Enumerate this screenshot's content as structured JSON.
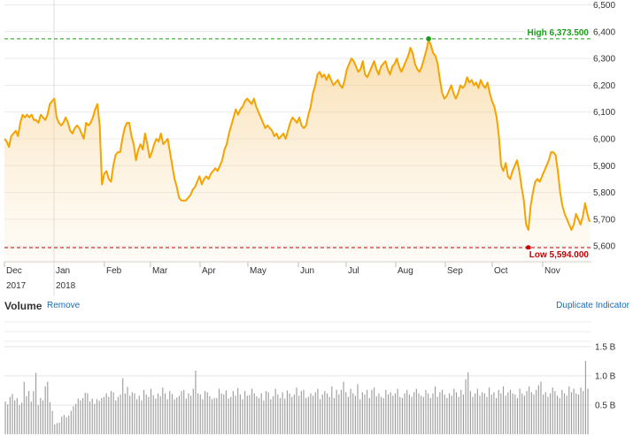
{
  "chart_data": [
    {
      "type": "area",
      "title": "",
      "xlabel": "",
      "ylabel": "",
      "ylim": [
        5500,
        6500
      ],
      "yticks": [
        5600,
        5700,
        5800,
        5900,
        6000,
        6100,
        6200,
        6300,
        6400,
        6500
      ],
      "ytick_labels": [
        "5,600",
        "5,700",
        "5,800",
        "5,900",
        "6,000",
        "6,100",
        "6,200",
        "6,300",
        "6,400",
        "6,500"
      ],
      "month_labels": [
        "Dec",
        "Jan",
        "Feb",
        "Mar",
        "Apr",
        "May",
        "Jun",
        "Jul",
        "Aug",
        "Sep",
        "Oct",
        "Nov"
      ],
      "year_labels": [
        "2017",
        "2018"
      ],
      "high": {
        "label": "High 6,373.500",
        "value": 6373.5,
        "color": "#1a9c1a"
      },
      "low": {
        "label": "Low 5,594.000",
        "value": 5594.0,
        "color": "#c00000"
      },
      "line_color": "#f5a300",
      "values": [
        6000,
        5990,
        5970,
        6010,
        6020,
        6030,
        6010,
        6060,
        6090,
        6080,
        6090,
        6080,
        6090,
        6070,
        6070,
        6060,
        6090,
        6080,
        6070,
        6090,
        6130,
        6140,
        6150,
        6080,
        6060,
        6050,
        6060,
        6080,
        6060,
        6030,
        6020,
        6040,
        6050,
        6040,
        6020,
        6000,
        6060,
        6050,
        6060,
        6080,
        6110,
        6130,
        6050,
        5830,
        5870,
        5880,
        5850,
        5840,
        5900,
        5940,
        5950,
        5950,
        6000,
        6040,
        6060,
        6060,
        6010,
        5980,
        5920,
        5960,
        5980,
        5960,
        6020,
        5980,
        5930,
        5950,
        5980,
        6000,
        5990,
        6020,
        5980,
        5990,
        6000,
        5950,
        5900,
        5850,
        5820,
        5780,
        5770,
        5770,
        5770,
        5780,
        5790,
        5810,
        5820,
        5840,
        5860,
        5830,
        5850,
        5860,
        5850,
        5870,
        5880,
        5890,
        5880,
        5900,
        5920,
        5960,
        5980,
        6020,
        6050,
        6080,
        6110,
        6090,
        6110,
        6120,
        6140,
        6150,
        6140,
        6130,
        6150,
        6120,
        6100,
        6080,
        6060,
        6040,
        6050,
        6040,
        6030,
        6010,
        6020,
        6000,
        6010,
        6020,
        6000,
        6030,
        6060,
        6080,
        6070,
        6060,
        6080,
        6050,
        6040,
        6050,
        6090,
        6120,
        6170,
        6200,
        6240,
        6250,
        6230,
        6240,
        6220,
        6240,
        6220,
        6200,
        6210,
        6220,
        6200,
        6190,
        6220,
        6260,
        6280,
        6300,
        6290,
        6270,
        6250,
        6260,
        6290,
        6240,
        6230,
        6250,
        6270,
        6290,
        6260,
        6240,
        6270,
        6280,
        6290,
        6260,
        6240,
        6270,
        6280,
        6300,
        6270,
        6250,
        6270,
        6290,
        6310,
        6340,
        6320,
        6280,
        6260,
        6250,
        6270,
        6300,
        6330,
        6370,
        6350,
        6320,
        6310,
        6280,
        6220,
        6170,
        6150,
        6160,
        6180,
        6200,
        6170,
        6150,
        6170,
        6200,
        6190,
        6200,
        6230,
        6210,
        6220,
        6200,
        6210,
        6190,
        6220,
        6200,
        6190,
        6210,
        6170,
        6140,
        6120,
        6080,
        6010,
        5900,
        5880,
        5910,
        5860,
        5850,
        5880,
        5900,
        5920,
        5880,
        5820,
        5770,
        5680,
        5660,
        5750,
        5800,
        5840,
        5850,
        5840,
        5860,
        5880,
        5900,
        5920,
        5950,
        5950,
        5940,
        5880,
        5800,
        5750,
        5720,
        5700,
        5680,
        5660,
        5680,
        5720,
        5700,
        5680,
        5710,
        5760,
        5720,
        5690
      ]
    },
    {
      "type": "bar",
      "title": "Volume",
      "ylim": [
        0,
        1500000000
      ],
      "yticks": [
        500000000,
        1000000000,
        1500000000
      ],
      "ytick_labels": [
        "0.5 B",
        "1.0 B",
        "1.5 B"
      ],
      "bar_color": "#9a9a9a",
      "values": [
        560000000,
        510000000,
        640000000,
        690000000,
        580000000,
        620000000,
        500000000,
        540000000,
        900000000,
        650000000,
        740000000,
        560000000,
        740000000,
        1050000000,
        500000000,
        620000000,
        580000000,
        820000000,
        900000000,
        550000000,
        400000000,
        170000000,
        190000000,
        200000000,
        300000000,
        330000000,
        290000000,
        320000000,
        400000000,
        480000000,
        520000000,
        610000000,
        580000000,
        620000000,
        710000000,
        700000000,
        560000000,
        610000000,
        520000000,
        600000000,
        570000000,
        620000000,
        640000000,
        700000000,
        640000000,
        740000000,
        720000000,
        580000000,
        640000000,
        680000000,
        960000000,
        700000000,
        810000000,
        660000000,
        720000000,
        700000000,
        600000000,
        660000000,
        580000000,
        760000000,
        680000000,
        640000000,
        780000000,
        670000000,
        610000000,
        700000000,
        650000000,
        800000000,
        700000000,
        600000000,
        740000000,
        690000000,
        600000000,
        630000000,
        660000000,
        740000000,
        760000000,
        610000000,
        700000000,
        660000000,
        780000000,
        1090000000,
        700000000,
        680000000,
        600000000,
        740000000,
        720000000,
        650000000,
        600000000,
        620000000,
        620000000,
        780000000,
        700000000,
        680000000,
        750000000,
        610000000,
        640000000,
        740000000,
        660000000,
        790000000,
        680000000,
        600000000,
        740000000,
        660000000,
        670000000,
        780000000,
        700000000,
        650000000,
        620000000,
        700000000,
        580000000,
        740000000,
        720000000,
        600000000,
        650000000,
        780000000,
        680000000,
        620000000,
        720000000,
        610000000,
        750000000,
        700000000,
        640000000,
        680000000,
        800000000,
        660000000,
        740000000,
        760000000,
        620000000,
        640000000,
        700000000,
        660000000,
        720000000,
        780000000,
        600000000,
        680000000,
        740000000,
        700000000,
        640000000,
        820000000,
        620000000,
        760000000,
        680000000,
        760000000,
        900000000,
        720000000,
        640000000,
        780000000,
        700000000,
        660000000,
        860000000,
        600000000,
        720000000,
        680000000,
        760000000,
        620000000,
        760000000,
        800000000,
        650000000,
        700000000,
        640000000,
        620000000,
        760000000,
        680000000,
        720000000,
        660000000,
        700000000,
        780000000,
        640000000,
        620000000,
        700000000,
        760000000,
        680000000,
        640000000,
        720000000,
        780000000,
        700000000,
        660000000,
        640000000,
        760000000,
        700000000,
        620000000,
        700000000,
        820000000,
        640000000,
        720000000,
        760000000,
        680000000,
        620000000,
        700000000,
        660000000,
        780000000,
        720000000,
        640000000,
        760000000,
        680000000,
        940000000,
        1060000000,
        740000000,
        640000000,
        700000000,
        780000000,
        660000000,
        720000000,
        700000000,
        640000000,
        800000000,
        680000000,
        720000000,
        620000000,
        760000000,
        700000000,
        820000000,
        660000000,
        720000000,
        760000000,
        700000000,
        680000000,
        620000000,
        780000000,
        700000000,
        660000000,
        740000000,
        820000000,
        720000000,
        680000000,
        760000000,
        840000000,
        900000000,
        680000000,
        720000000,
        640000000,
        700000000,
        800000000,
        740000000,
        660000000,
        620000000,
        760000000,
        700000000,
        660000000,
        820000000,
        720000000,
        780000000,
        700000000,
        680000000,
        800000000,
        740000000,
        1260000000,
        780000000
      ]
    }
  ],
  "volume_panel": {
    "title": "Volume",
    "remove_label": "Remove",
    "duplicate_label": "Duplicate Indicator"
  }
}
